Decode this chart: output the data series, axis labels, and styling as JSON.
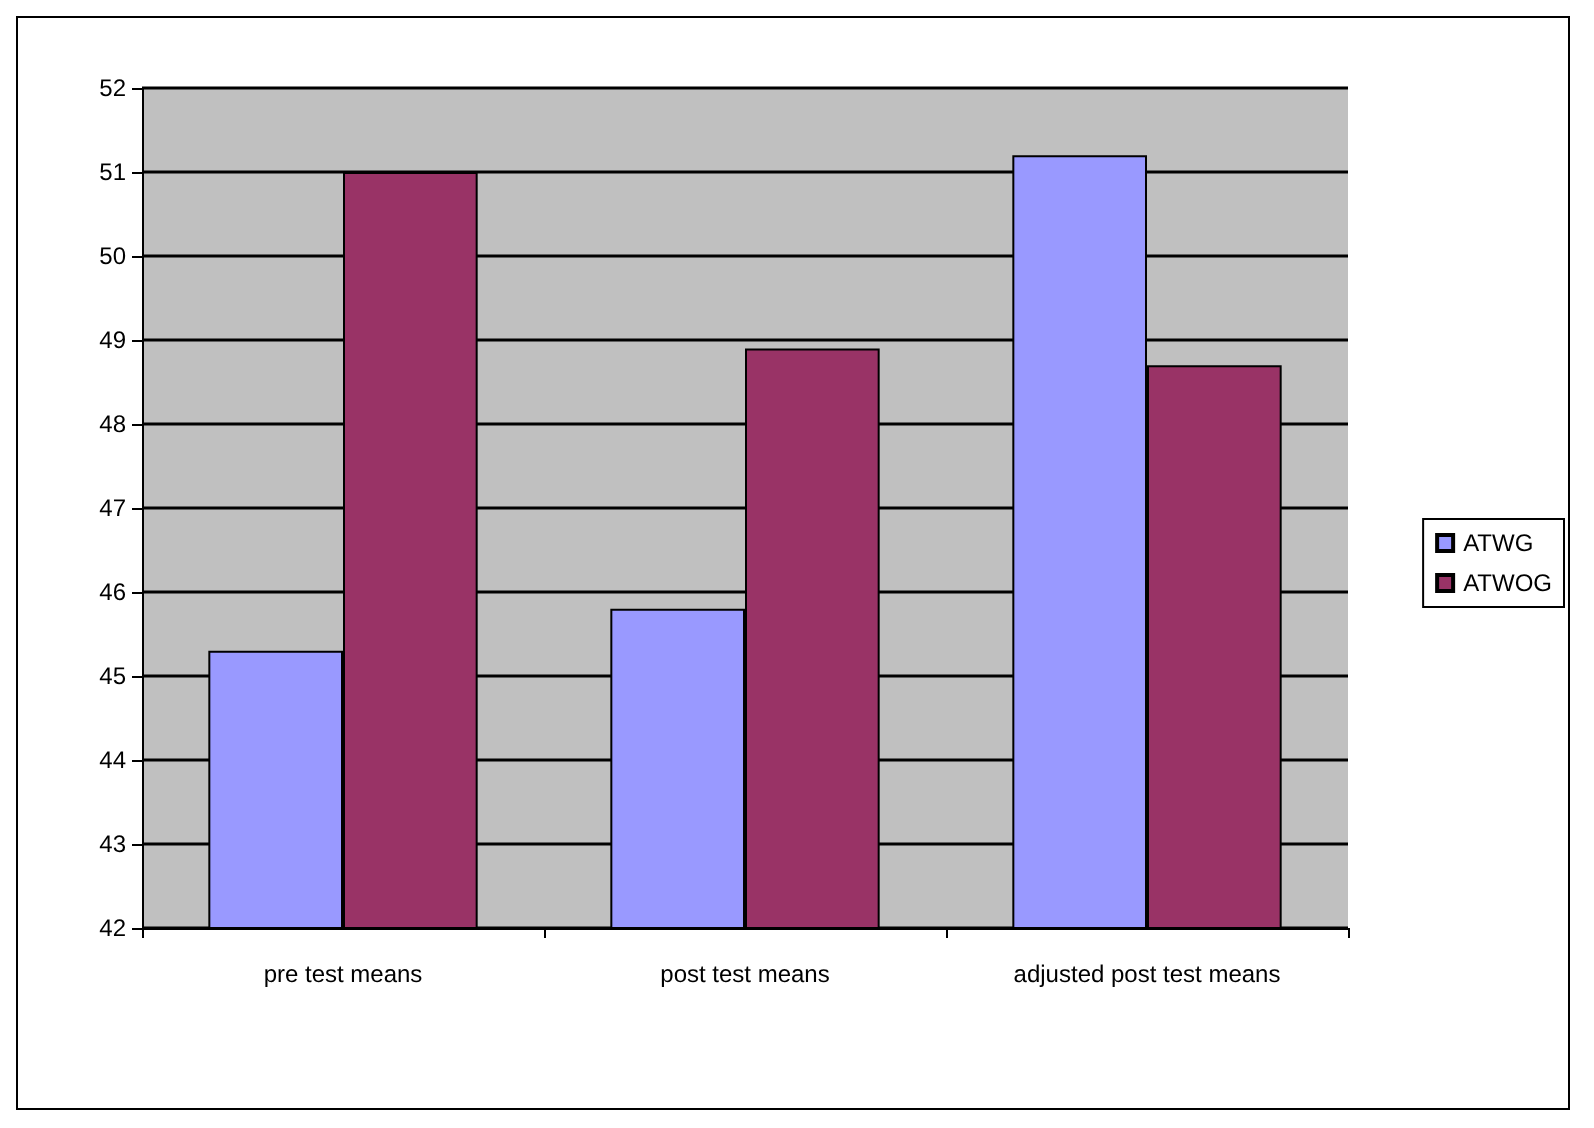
{
  "chart_data": {
    "type": "bar",
    "categories": [
      "pre test means",
      "post test means",
      "adjusted post test means"
    ],
    "series": [
      {
        "name": "ATWG",
        "color": "#9999ff",
        "values": [
          45.3,
          45.8,
          51.2
        ]
      },
      {
        "name": "ATWOG",
        "color": "#993366",
        "values": [
          51.0,
          48.9,
          48.7
        ]
      }
    ],
    "ylim": [
      42,
      52
    ],
    "yticks": [
      42,
      43,
      44,
      45,
      46,
      47,
      48,
      49,
      50,
      51,
      52
    ],
    "grid": "y",
    "legend": "right"
  }
}
